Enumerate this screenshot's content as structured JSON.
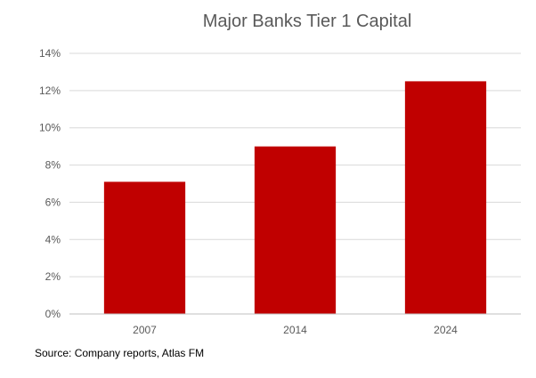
{
  "chart_data": {
    "type": "bar",
    "title": "Major Banks Tier 1 Capital",
    "categories": [
      "2007",
      "2014",
      "2024"
    ],
    "values": [
      7.1,
      9.0,
      12.5
    ],
    "ylim": [
      0,
      14
    ],
    "yticks": [
      "0%",
      "2%",
      "4%",
      "6%",
      "8%",
      "10%",
      "12%",
      "14%"
    ],
    "ytick_values": [
      0,
      2,
      4,
      6,
      8,
      10,
      12,
      14
    ],
    "grid": true,
    "legend": "none",
    "colors": {
      "bar": "#C00000",
      "grid": "#D9D9D9",
      "axis": "#BFBFBF",
      "text": "#595959"
    }
  },
  "source": "Source: Company reports, Atlas FM"
}
